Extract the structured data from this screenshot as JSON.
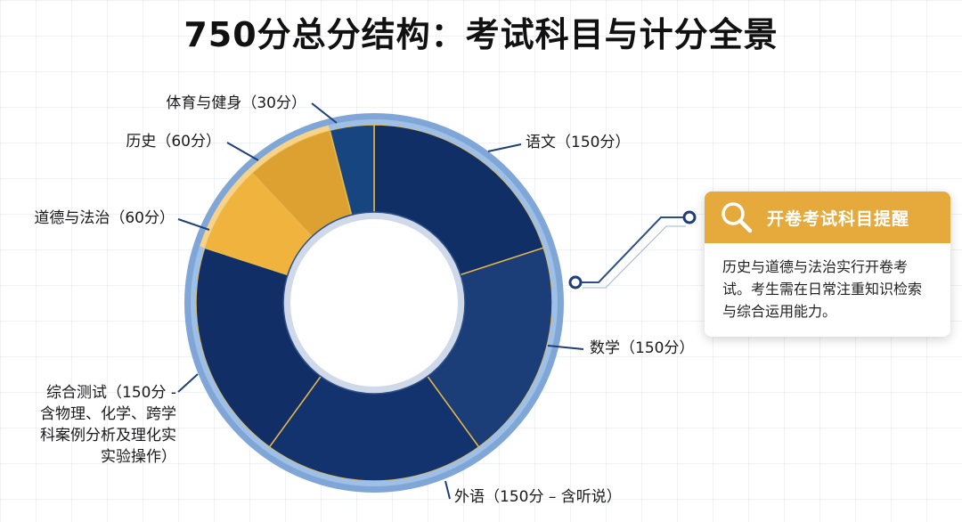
{
  "title": "750分总分结构：考试科目与计分全景",
  "chart_data": {
    "type": "pie",
    "style": "donut",
    "total": 750,
    "slices": [
      {
        "label": "语文（150分）",
        "value": 150,
        "color": "#0f2f66"
      },
      {
        "label": "数学（150分）",
        "value": 150,
        "color": "#1b3d78"
      },
      {
        "label": "外语（150分 – 含听说）",
        "value": 150,
        "color": "#12336e"
      },
      {
        "label": "综合测试（150分 -\n含物理、化学、跨学\n科案例分析及理化实\n实验操作）",
        "value": 150,
        "color": "#112f66"
      },
      {
        "label": "道德与法治（60分）",
        "value": 60,
        "color": "#f0b43e"
      },
      {
        "label": "历史（60分）",
        "value": 60,
        "color": "#dca131"
      },
      {
        "label": "体育与健身（30分）",
        "value": 30,
        "color": "#17457f"
      }
    ]
  },
  "callout": {
    "title": "开卷考试科目提醒",
    "icon": "search-icon",
    "text": "历史与道德与法治实行开卷考试。考生需在日常注重知识检索与综合运用能力。"
  }
}
